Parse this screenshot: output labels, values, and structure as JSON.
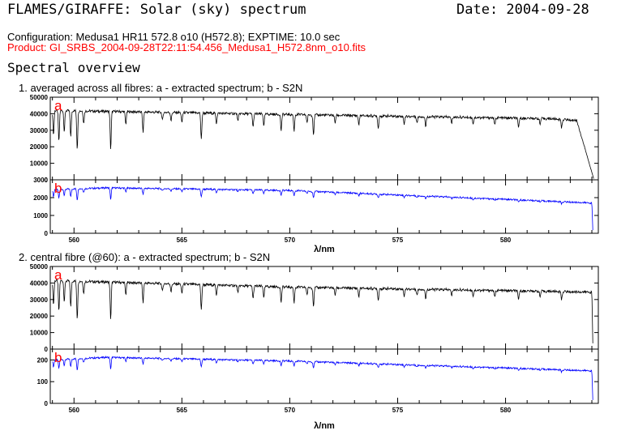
{
  "header": {
    "title": "FLAMES/GIRAFFE: Solar (sky) spectrum",
    "date": "Date: 2004-09-28",
    "configuration": "Configuration: Medusa1 HR11 572.8 o10 (H572.8); EXPTIME: 10.0 sec",
    "product": "Product: GI_SRBS_2004-09-28T22:11:54.456_Medusa1_H572.8nm_o10.fits",
    "section_title": "Spectral overview"
  },
  "colors": {
    "spectrum": "#000000",
    "s2n": "#0000ff",
    "panel_letter": "#ff0000",
    "product": "#ff0000"
  },
  "chart_data": [
    {
      "type": "line",
      "title": "1. averaged across all fibres: a - extracted spectrum; b - S2N",
      "xlabel": "λ/nm",
      "xlim": [
        558.9,
        584.3
      ],
      "x_ticks": [
        560,
        565,
        570,
        575,
        580
      ],
      "panels": [
        {
          "letter": "a",
          "series": "extracted spectrum",
          "color": "#000000",
          "ylim": [
            0,
            50000
          ],
          "y_ticks": [
            0,
            10000,
            20000,
            30000,
            40000,
            50000
          ],
          "continuum": {
            "x": [
              559.0,
              570.0,
              582.0,
              583.3
            ],
            "y": [
              42000,
              39500,
              37000,
              36000
            ]
          },
          "edge_drop": {
            "start": 583.3,
            "end": 584.1,
            "end_value": 0
          }
        },
        {
          "letter": "b",
          "series": "S2N",
          "color": "#0000ff",
          "ylim": [
            0,
            3000
          ],
          "y_ticks": [
            0,
            1000,
            2000,
            3000
          ],
          "continuum": {
            "x": [
              559.0,
              561.5,
              570.0,
              584.0
            ],
            "y": [
              2450,
              2550,
              2400,
              1700
            ]
          },
          "edge_drop": {
            "start": 584.0,
            "end": 584.05,
            "end_value": 0
          }
        }
      ]
    },
    {
      "type": "line",
      "title": "2. central fibre (@60): a - extracted spectrum; b - S2N",
      "xlabel": "λ/nm",
      "xlim": [
        558.9,
        584.3
      ],
      "x_ticks": [
        560,
        565,
        570,
        575,
        580
      ],
      "panels": [
        {
          "letter": "a",
          "series": "extracted spectrum",
          "color": "#000000",
          "ylim": [
            0,
            50000
          ],
          "y_ticks": [
            0,
            10000,
            20000,
            30000,
            40000,
            50000
          ],
          "continuum": {
            "x": [
              559.0,
              570.0,
              584.0
            ],
            "y": [
              41500,
              37500,
              34500
            ]
          },
          "edge_drop": {
            "start": 584.0,
            "end": 584.05,
            "end_value": 0
          }
        },
        {
          "letter": "b",
          "series": "S2N",
          "color": "#0000ff",
          "ylim": [
            0,
            250
          ],
          "y_ticks": [
            0,
            100,
            200
          ],
          "continuum": {
            "x": [
              559.0,
              561.5,
              570.0,
              584.0
            ],
            "y": [
              200,
              212,
              195,
              150
            ]
          },
          "edge_drop": {
            "start": 584.0,
            "end": 584.05,
            "end_value": 0
          }
        }
      ]
    }
  ],
  "absorption_lines": {
    "wavelength": [
      559.05,
      559.3,
      559.55,
      559.85,
      560.15,
      560.45,
      561.7,
      562.4,
      563.2,
      564.1,
      564.5,
      565.0,
      565.9,
      566.6,
      567.6,
      568.3,
      568.8,
      569.6,
      570.2,
      570.8,
      571.1,
      572.1,
      573.2,
      574.1,
      575.3,
      575.9,
      576.3,
      577.5,
      578.5,
      579.5,
      580.6,
      581.6,
      582.6
    ],
    "depth": [
      0.35,
      0.45,
      0.3,
      0.38,
      0.55,
      0.18,
      0.55,
      0.18,
      0.3,
      0.12,
      0.12,
      0.15,
      0.4,
      0.15,
      0.12,
      0.2,
      0.18,
      0.25,
      0.25,
      0.12,
      0.3,
      0.12,
      0.14,
      0.2,
      0.12,
      0.1,
      0.16,
      0.1,
      0.1,
      0.12,
      0.16,
      0.1,
      0.14
    ]
  }
}
